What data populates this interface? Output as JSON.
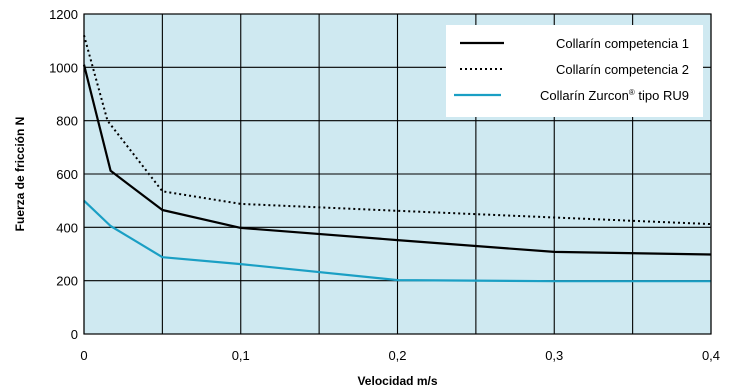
{
  "chart_data": {
    "type": "line",
    "title": "",
    "xlabel": "Velocidad m/s",
    "ylabel": "Fuerza de fricción N",
    "xlim": [
      0,
      0.4
    ],
    "ylim": [
      0,
      1200
    ],
    "x_ticks": [
      0,
      0.05,
      0.1,
      0.15,
      0.2,
      0.25,
      0.3,
      0.35,
      0.4
    ],
    "x_tick_labels": [
      "0",
      "",
      "0,1",
      "",
      "0,2",
      "",
      "0,3",
      "",
      "0,4"
    ],
    "y_ticks": [
      0,
      200,
      400,
      600,
      800,
      1000,
      1200
    ],
    "y_tick_labels": [
      "0",
      "200",
      "400",
      "600",
      "800",
      "1000",
      "1200"
    ],
    "grid": true,
    "legend_position": "top-right",
    "plot_background": "#cfe9f1",
    "series": [
      {
        "name": "Collarín competencia 1",
        "style": "solid",
        "color": "#000000",
        "points": [
          [
            0,
            1010
          ],
          [
            0.017,
            612
          ],
          [
            0.05,
            465
          ],
          [
            0.1,
            398
          ],
          [
            0.2,
            352
          ],
          [
            0.3,
            308
          ],
          [
            0.4,
            298
          ]
        ]
      },
      {
        "name": "Collarín competencia 2",
        "style": "dotted",
        "color": "#000000",
        "points": [
          [
            0,
            1120
          ],
          [
            0.015,
            800
          ],
          [
            0.05,
            535
          ],
          [
            0.1,
            488
          ],
          [
            0.2,
            462
          ],
          [
            0.3,
            437
          ],
          [
            0.4,
            412
          ]
        ]
      },
      {
        "name": "Collarín Zurcon® tipo RU9",
        "style": "solid",
        "color": "#1a9fc4",
        "points": [
          [
            0,
            500
          ],
          [
            0.017,
            405
          ],
          [
            0.05,
            288
          ],
          [
            0.1,
            262
          ],
          [
            0.2,
            202
          ],
          [
            0.3,
            198
          ],
          [
            0.4,
            198
          ]
        ]
      }
    ]
  }
}
